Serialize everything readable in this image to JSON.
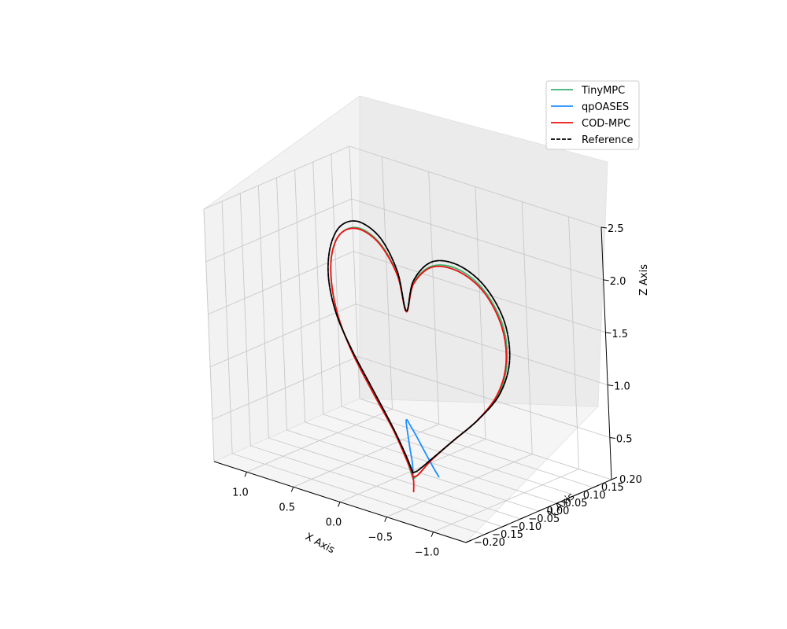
{
  "chart_data": {
    "type": "line",
    "projection": "3d",
    "xlabel": "X Axis",
    "ylabel": "Y Axis",
    "zlabel": "Z Axis",
    "xlim": [
      -1.35,
      1.35
    ],
    "ylim": [
      -0.2,
      0.2
    ],
    "zlim": [
      0.1,
      2.5
    ],
    "xticks": [
      {
        "value": 1.0,
        "label": "1.0"
      },
      {
        "value": 0.5,
        "label": "0.5"
      },
      {
        "value": 0.0,
        "label": "0.0"
      },
      {
        "value": -0.5,
        "label": "−0.5"
      },
      {
        "value": -1.0,
        "label": "−1.0"
      }
    ],
    "yticks": [
      {
        "value": -0.2,
        "label": "−0.20"
      },
      {
        "value": -0.15,
        "label": "−0.15"
      },
      {
        "value": -0.1,
        "label": "−0.10"
      },
      {
        "value": -0.05,
        "label": "−0.05"
      },
      {
        "value": 0.0,
        "label": "0.00"
      },
      {
        "value": 0.05,
        "label": "0.05"
      },
      {
        "value": 0.1,
        "label": "0.10"
      },
      {
        "value": 0.15,
        "label": "0.15"
      },
      {
        "value": 0.2,
        "label": "0.20"
      }
    ],
    "zticks": [
      {
        "value": 0.5,
        "label": "0.5"
      },
      {
        "value": 1.0,
        "label": "1.0"
      },
      {
        "value": 1.5,
        "label": "1.5"
      },
      {
        "value": 2.0,
        "label": "2.0"
      },
      {
        "value": 2.5,
        "label": "2.5"
      }
    ],
    "grid": true,
    "legend_position": "top-right",
    "series": [
      {
        "name": "TinyMPC",
        "color": "#3cb371",
        "dash": "solid",
        "points": [
          [
            0.0,
            0.0,
            0.02
          ],
          [
            0.07,
            0.0,
            0.2
          ],
          [
            0.2,
            0.0,
            0.44
          ],
          [
            0.4,
            0.0,
            0.73
          ],
          [
            0.6,
            0.0,
            1.04
          ],
          [
            0.74,
            0.0,
            1.35
          ],
          [
            0.8,
            0.0,
            1.66
          ],
          [
            0.78,
            0.0,
            1.95
          ],
          [
            0.67,
            0.0,
            2.17
          ],
          [
            0.48,
            0.0,
            2.27
          ],
          [
            0.26,
            0.0,
            2.19
          ],
          [
            0.08,
            0.0,
            1.94
          ],
          [
            0.0,
            0.0,
            1.61
          ],
          [
            -0.09,
            0.0,
            1.91
          ],
          [
            -0.3,
            0.0,
            2.13
          ],
          [
            -0.58,
            0.0,
            2.18
          ],
          [
            -0.85,
            0.0,
            2.06
          ],
          [
            -1.04,
            0.0,
            1.78
          ],
          [
            -1.07,
            0.0,
            1.43
          ],
          [
            -0.96,
            0.0,
            1.09
          ],
          [
            -0.72,
            0.0,
            0.78
          ],
          [
            -0.44,
            0.0,
            0.5
          ],
          [
            -0.2,
            0.0,
            0.25
          ],
          [
            -0.06,
            0.0,
            0.08
          ],
          [
            0.0,
            0.0,
            0.02
          ]
        ]
      },
      {
        "name": "qpOASES",
        "color": "#1e90ff",
        "dash": "solid",
        "points": [
          [
            -0.28,
            0.0,
            0.12
          ],
          [
            -0.22,
            0.0,
            0.2
          ],
          [
            -0.13,
            0.0,
            0.33
          ],
          [
            -0.05,
            0.0,
            0.45
          ],
          [
            0.01,
            0.0,
            0.53
          ],
          [
            0.04,
            0.0,
            0.57
          ],
          [
            0.05,
            0.0,
            0.55
          ],
          [
            0.04,
            0.0,
            0.45
          ],
          [
            0.02,
            0.0,
            0.3
          ],
          [
            0.0,
            0.0,
            0.16
          ],
          [
            0.0,
            0.0,
            0.02
          ]
        ]
      },
      {
        "name": "COD-MPC",
        "color": "#ee1111",
        "dash": "solid",
        "points": [
          [
            0.0,
            0.0,
            -0.1
          ],
          [
            0.0,
            0.0,
            0.04
          ],
          [
            0.07,
            0.0,
            0.2
          ],
          [
            0.2,
            0.0,
            0.44
          ],
          [
            0.4,
            0.0,
            0.73
          ],
          [
            0.6,
            0.0,
            1.04
          ],
          [
            0.74,
            0.0,
            1.35
          ],
          [
            0.8,
            0.0,
            1.66
          ],
          [
            0.78,
            0.0,
            1.95
          ],
          [
            0.67,
            0.0,
            2.17
          ],
          [
            0.48,
            0.0,
            2.26
          ],
          [
            0.26,
            0.0,
            2.18
          ],
          [
            0.08,
            0.0,
            1.93
          ],
          [
            0.0,
            0.0,
            1.61
          ],
          [
            -0.09,
            0.0,
            1.9
          ],
          [
            -0.3,
            0.0,
            2.12
          ],
          [
            -0.58,
            0.0,
            2.16
          ],
          [
            -0.85,
            0.0,
            2.04
          ],
          [
            -1.03,
            0.0,
            1.76
          ],
          [
            -1.06,
            0.0,
            1.42
          ],
          [
            -0.95,
            0.0,
            1.09
          ],
          [
            -0.72,
            0.0,
            0.78
          ],
          [
            -0.44,
            0.0,
            0.5
          ],
          [
            -0.2,
            0.0,
            0.25
          ],
          [
            -0.06,
            0.0,
            0.08
          ],
          [
            0.0,
            0.0,
            0.04
          ]
        ]
      },
      {
        "name": "Reference",
        "color": "#000000",
        "dash": "dashed",
        "points": [
          [
            0.0,
            0.0,
            0.08
          ],
          [
            0.07,
            0.0,
            0.23
          ],
          [
            0.2,
            0.0,
            0.46
          ],
          [
            0.4,
            0.0,
            0.76
          ],
          [
            0.6,
            0.0,
            1.06
          ],
          [
            0.76,
            0.0,
            1.37
          ],
          [
            0.83,
            0.0,
            1.69
          ],
          [
            0.8,
            0.0,
            1.99
          ],
          [
            0.68,
            0.0,
            2.23
          ],
          [
            0.48,
            0.0,
            2.33
          ],
          [
            0.25,
            0.0,
            2.24
          ],
          [
            0.08,
            0.0,
            1.97
          ],
          [
            0.0,
            0.0,
            1.62
          ],
          [
            -0.09,
            0.0,
            1.93
          ],
          [
            -0.3,
            0.0,
            2.17
          ],
          [
            -0.58,
            0.0,
            2.22
          ],
          [
            -0.86,
            0.0,
            2.1
          ],
          [
            -1.06,
            0.0,
            1.82
          ],
          [
            -1.1,
            0.0,
            1.46
          ],
          [
            -0.98,
            0.0,
            1.11
          ],
          [
            -0.74,
            0.0,
            0.8
          ],
          [
            -0.46,
            0.0,
            0.52
          ],
          [
            -0.21,
            0.0,
            0.27
          ],
          [
            -0.06,
            0.0,
            0.12
          ],
          [
            0.0,
            0.0,
            0.08
          ]
        ]
      }
    ]
  }
}
